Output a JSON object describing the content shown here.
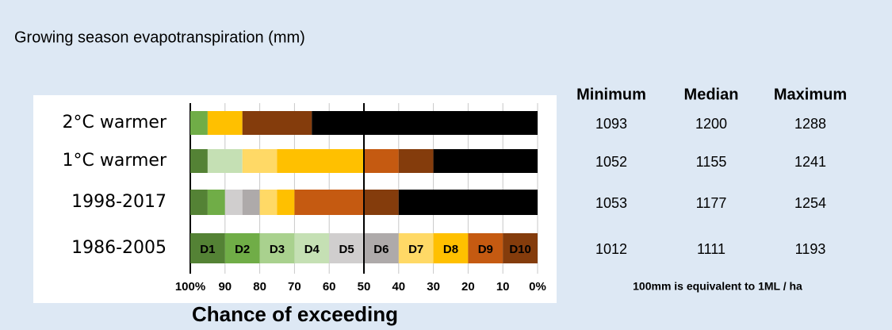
{
  "chart_data": {
    "type": "bar",
    "orientation": "horizontal",
    "stacked": true,
    "title": "Growing season evapotranspiration (mm)",
    "xlabel": "Chance of exceeding",
    "categories": [
      "2°C warmer",
      "1°C warmer",
      "1998-2017",
      "1986-2005"
    ],
    "series": [
      {
        "name": "D1",
        "color": "#548235",
        "values": [
          0,
          5,
          5,
          10
        ]
      },
      {
        "name": "D2",
        "color": "#70ad47",
        "values": [
          5,
          0,
          5,
          10
        ]
      },
      {
        "name": "D3",
        "color": "#a9d18e",
        "values": [
          0,
          0,
          0,
          10
        ]
      },
      {
        "name": "D4",
        "color": "#c5e0b4",
        "values": [
          0,
          10,
          0,
          10
        ]
      },
      {
        "name": "D5",
        "color": "#d0cece",
        "values": [
          0,
          0,
          5,
          10
        ]
      },
      {
        "name": "D6",
        "color": "#aeaaaa",
        "values": [
          0,
          0,
          5,
          10
        ]
      },
      {
        "name": "D7",
        "color": "#ffd966",
        "values": [
          0,
          10,
          5,
          10
        ]
      },
      {
        "name": "D8",
        "color": "#ffc000",
        "values": [
          10,
          25,
          5,
          10
        ]
      },
      {
        "name": "D9",
        "color": "#c55a11",
        "values": [
          0,
          10,
          20,
          10
        ]
      },
      {
        "name": "D10",
        "color": "#843c0c",
        "values": [
          20,
          10,
          10,
          10
        ]
      },
      {
        "color": "#000000",
        "values": [
          65,
          30,
          40,
          0
        ]
      }
    ],
    "xlim": [
      100,
      0
    ],
    "xticks": [
      {
        "value": 100,
        "label": "100%"
      },
      90,
      80,
      70,
      60,
      50,
      40,
      30,
      20,
      10,
      {
        "value": 0,
        "label": "0%"
      }
    ],
    "grid": true
  },
  "table": {
    "headers": [
      "Minimum",
      "Median",
      "Maximum"
    ],
    "rows": [
      [
        1093,
        1200,
        1288
      ],
      [
        1052,
        1155,
        1241
      ],
      [
        1053,
        1177,
        1254
      ],
      [
        1012,
        1111,
        1193
      ]
    ],
    "note": "100mm is equivalent to 1ML / ha"
  }
}
